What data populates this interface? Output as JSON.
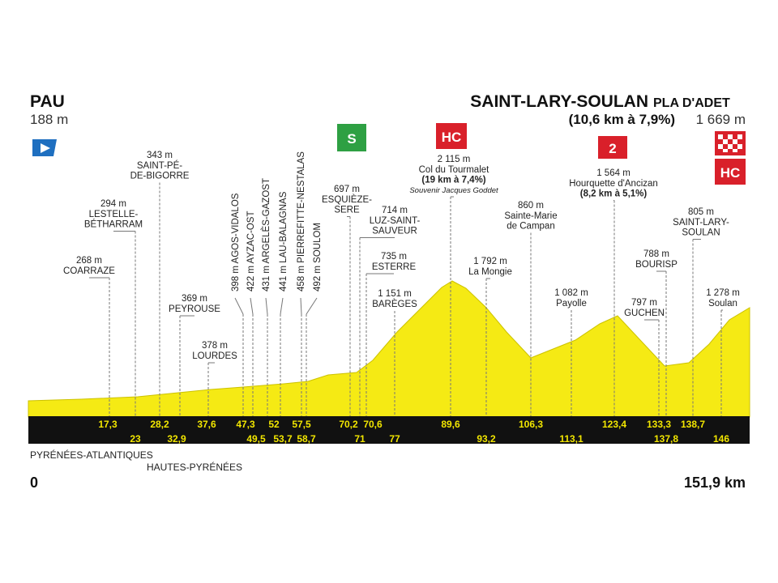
{
  "start": {
    "name": "PAU",
    "altitude": "188 m"
  },
  "finish": {
    "name": "SAINT-LARY-SOULAN",
    "suffix": "PLA D'ADET",
    "climb": "(10,6 km à 7,9%)",
    "altitude": "1 669 m"
  },
  "badges": [
    "S",
    "HC",
    "2",
    "HC"
  ],
  "waypoints": [
    {
      "altitude": "268 m",
      "name": [
        "COARRAZE"
      ],
      "km": "17,3"
    },
    {
      "altitude": "294 m",
      "name": [
        "LESTELLE-",
        "BÉTHARRAM"
      ],
      "km": "23"
    },
    {
      "altitude": "343 m",
      "name": [
        "SAINT-PÉ-",
        "DE-BIGORRE"
      ],
      "km": "28,2"
    },
    {
      "altitude": "369 m",
      "name": [
        "PEYROUSE"
      ],
      "km": "32,9"
    },
    {
      "altitude": "378 m",
      "name": [
        "LOURDES"
      ],
      "km": "37,6"
    },
    {
      "altitude": "398 m",
      "name": [
        "AGOS-VIDALOS"
      ],
      "km": "47,3"
    },
    {
      "altitude": "422 m",
      "name": [
        "AYZAC-OST"
      ],
      "km": "49,5"
    },
    {
      "altitude": "431 m",
      "name": [
        "ARGELÈS-GAZOST"
      ],
      "km": "52"
    },
    {
      "altitude": "441 m",
      "name": [
        "LAU-BALAGNAS"
      ],
      "km": "53,7"
    },
    {
      "altitude": "458 m",
      "name": [
        "PIERREFITTE-NESTALAS"
      ],
      "km": "57,5"
    },
    {
      "altitude": "492 m",
      "name": [
        "SOULOM"
      ],
      "km": "58,7"
    },
    {
      "altitude": "697 m",
      "name": [
        "ESQUIÈZE-",
        "SERE"
      ],
      "km": "70,2"
    },
    {
      "altitude": "714 m",
      "name": [
        "LUZ-SAINT-",
        "SAUVEUR"
      ],
      "km": "71"
    },
    {
      "altitude": "735 m",
      "name": [
        "ESTERRE"
      ],
      "km": "70,6"
    },
    {
      "altitude": "1 151 m",
      "name": [
        "BARÈGES"
      ],
      "km": "77"
    },
    {
      "altitude": "2 115 m",
      "name": [
        "Col du Tourmalet",
        "(19 km à 7,4%)",
        "Souvenir Jacques Goddet"
      ],
      "km": "89,6"
    },
    {
      "altitude": "1 792 m",
      "name": [
        "La Mongie"
      ],
      "km": "93,2"
    },
    {
      "altitude": "860 m",
      "name": [
        "Sainte-Marie",
        "de Campan"
      ],
      "km": "106,3"
    },
    {
      "altitude": "1 082 m",
      "name": [
        "Payolle"
      ],
      "km": "113,1"
    },
    {
      "altitude": "1 564 m",
      "name": [
        "Hourquette d'Ancizan",
        "(8,2 km à 5,1%)"
      ],
      "km": "123,4"
    },
    {
      "altitude": "797 m",
      "name": [
        "GUCHEN"
      ],
      "km": "133,3"
    },
    {
      "altitude": "788 m",
      "name": [
        "BOURISP"
      ],
      "km": "137,8"
    },
    {
      "altitude": "805 m",
      "name": [
        "SAINT-LARY-",
        "SOULAN"
      ],
      "km": "138,7"
    },
    {
      "altitude": "1 278 m",
      "name": [
        "Soulan"
      ],
      "km": "146"
    }
  ],
  "departments": [
    "PYRÉNÉES-ATLANTIQUES",
    "HAUTES-PYRÉNÉES"
  ],
  "distance": {
    "start": "0",
    "end": "151,9 km"
  }
}
